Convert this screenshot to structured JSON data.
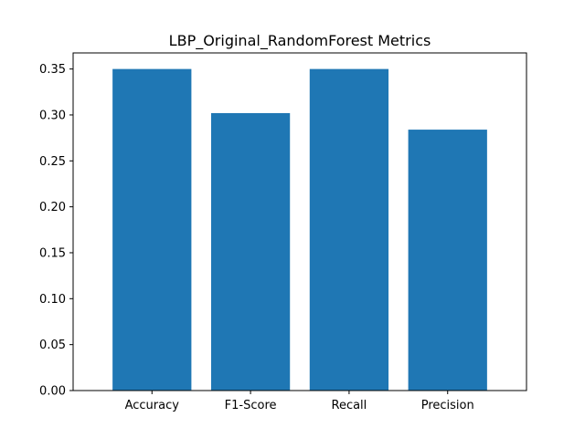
{
  "chart_data": {
    "type": "bar",
    "title": "LBP_Original_RandomForest Metrics",
    "xlabel": "",
    "ylabel": "",
    "categories": [
      "Accuracy",
      "F1-Score",
      "Recall",
      "Precision"
    ],
    "values": [
      0.35,
      0.302,
      0.35,
      0.284
    ],
    "ylim": [
      0,
      0.3675
    ],
    "yticks": [
      "0.00",
      "0.05",
      "0.10",
      "0.15",
      "0.20",
      "0.25",
      "0.30",
      "0.35"
    ],
    "bar_color": "#1f77b4",
    "grid": false
  }
}
